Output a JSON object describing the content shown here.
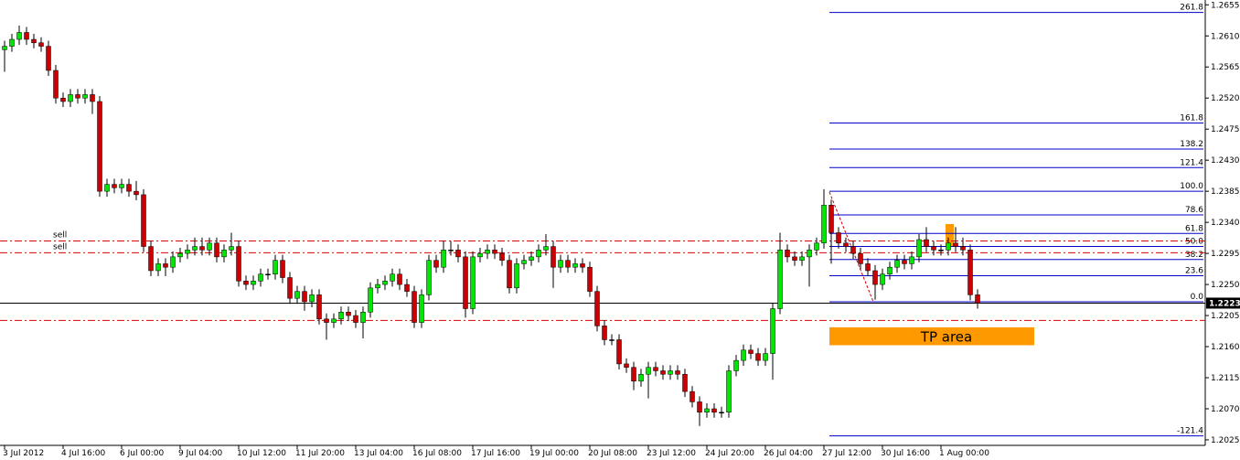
{
  "chart_data": {
    "type": "candlestick",
    "categories": [
      "3 Jul 2012",
      null,
      null,
      null,
      null,
      null,
      null,
      null,
      "4 Jul 16:00",
      null,
      null,
      null,
      null,
      null,
      null,
      null,
      "6 Jul 00:00",
      null,
      null,
      null,
      null,
      null,
      null,
      null,
      "9 Jul 04:00",
      null,
      null,
      null,
      null,
      null,
      null,
      null,
      "10 Jul 12:00",
      null,
      null,
      null,
      null,
      null,
      null,
      null,
      "11 Jul 20:00",
      null,
      null,
      null,
      null,
      null,
      null,
      null,
      "13 Jul 04:00",
      null,
      null,
      null,
      null,
      null,
      null,
      null,
      "16 Jul 08:00",
      null,
      null,
      null,
      null,
      null,
      null,
      null,
      "17 Jul 16:00",
      null,
      null,
      null,
      null,
      null,
      null,
      null,
      "19 Jul 00:00",
      null,
      null,
      null,
      null,
      null,
      null,
      null,
      "20 Jul 08:00",
      null,
      null,
      null,
      null,
      null,
      null,
      null,
      "23 Jul 12:00",
      null,
      null,
      null,
      null,
      null,
      null,
      null,
      "24 Jul 20:00",
      null,
      null,
      null,
      null,
      null,
      null,
      null,
      "26 Jul 04:00",
      null,
      null,
      null,
      null,
      null,
      null,
      null,
      "27 Jul 12:00",
      null,
      null,
      null,
      null,
      null,
      null,
      null,
      "30 Jul 16:00",
      null,
      null,
      null,
      null,
      null,
      null,
      null,
      "1 Aug 00:00",
      null,
      null,
      null,
      null,
      null
    ],
    "open": [
      1.259,
      1.2595,
      1.2605,
      1.2615,
      1.2605,
      1.26,
      1.2595,
      1.256,
      1.252,
      1.2515,
      1.2525,
      1.252,
      1.2525,
      1.2515,
      1.2385,
      1.2395,
      1.239,
      1.2395,
      1.2385,
      1.238,
      1.2305,
      1.227,
      1.228,
      1.2275,
      1.229,
      1.2295,
      1.23,
      1.2305,
      1.23,
      1.231,
      1.229,
      1.23,
      1.2305,
      1.2255,
      1.225,
      1.2255,
      1.2265,
      1.2265,
      1.2285,
      1.226,
      1.223,
      1.224,
      1.2225,
      1.2235,
      1.22,
      1.2195,
      1.22,
      1.221,
      1.2205,
      1.2195,
      1.221,
      1.2245,
      1.225,
      1.2255,
      1.2265,
      1.225,
      1.224,
      1.2195,
      1.2235,
      1.2285,
      1.2275,
      1.23,
      1.23,
      1.229,
      1.2215,
      1.229,
      1.2295,
      1.23,
      1.2295,
      1.2285,
      1.2245,
      1.228,
      1.2285,
      1.229,
      1.23,
      1.2305,
      1.2275,
      1.2285,
      1.2275,
      1.228,
      1.2275,
      1.224,
      1.219,
      1.217,
      1.217,
      1.2135,
      1.213,
      1.211,
      1.212,
      1.213,
      1.2125,
      1.212,
      1.2125,
      1.212,
      1.2095,
      1.208,
      1.2065,
      1.207,
      1.2065,
      1.2065,
      1.2125,
      1.214,
      1.2155,
      1.215,
      1.214,
      1.215,
      1.2215,
      1.23,
      1.229,
      1.2285,
      1.229,
      1.23,
      1.231,
      1.2365,
      1.2325,
      1.231,
      1.2305,
      1.2295,
      1.228,
      1.227,
      1.225,
      1.2265,
      1.2275,
      1.2285,
      1.228,
      1.229,
      1.2315,
      1.2305,
      1.23,
      1.23,
      1.231,
      1.2305,
      1.23,
      1.2235
    ],
    "high": [
      1.2603,
      1.2613,
      1.2625,
      1.2623,
      1.2613,
      1.2608,
      1.2603,
      1.2568,
      1.2528,
      1.2533,
      1.2533,
      1.2533,
      1.2533,
      1.2523,
      1.2403,
      1.2403,
      1.2403,
      1.2403,
      1.24,
      1.2388,
      1.2313,
      1.2288,
      1.2288,
      1.2298,
      1.2303,
      1.2308,
      1.2318,
      1.2318,
      1.2318,
      1.2318,
      1.2308,
      1.2325,
      1.2313,
      1.2263,
      1.2263,
      1.2273,
      1.2273,
      1.2293,
      1.2293,
      1.2268,
      1.2248,
      1.2248,
      1.2243,
      1.2243,
      1.2208,
      1.2208,
      1.2218,
      1.2218,
      1.2213,
      1.2218,
      1.2253,
      1.2258,
      1.2263,
      1.2273,
      1.2273,
      1.2258,
      1.2248,
      1.2243,
      1.2293,
      1.2293,
      1.2313,
      1.2313,
      1.2308,
      1.2298,
      1.2298,
      1.2303,
      1.2308,
      1.2308,
      1.2303,
      1.2293,
      1.2288,
      1.2293,
      1.2298,
      1.2308,
      1.2323,
      1.2313,
      1.2293,
      1.2293,
      1.2288,
      1.2288,
      1.2283,
      1.2248,
      1.2198,
      1.2178,
      1.2178,
      1.2143,
      1.2138,
      1.2128,
      1.2138,
      1.2138,
      1.2133,
      1.2133,
      1.2133,
      1.2128,
      1.2103,
      1.2088,
      1.2078,
      1.2078,
      1.2073,
      1.2133,
      1.2148,
      1.2163,
      1.2163,
      1.2158,
      1.2158,
      1.2223,
      1.2325,
      1.2308,
      1.2298,
      1.2298,
      1.2308,
      1.2318,
      1.2388,
      1.2373,
      1.2333,
      1.2318,
      1.2313,
      1.2303,
      1.2288,
      1.2278,
      1.2273,
      1.2283,
      1.2293,
      1.2293,
      1.2298,
      1.2323,
      1.2333,
      1.2313,
      1.2308,
      1.2318,
      1.2333,
      1.2318,
      1.2308,
      1.2243
    ],
    "low": [
      1.2558,
      1.2587,
      1.2597,
      1.2597,
      1.2592,
      1.2587,
      1.2552,
      1.2512,
      1.2507,
      1.2507,
      1.2512,
      1.2512,
      1.2497,
      1.2377,
      1.2377,
      1.2382,
      1.2382,
      1.2377,
      1.2372,
      1.2297,
      1.2262,
      1.2262,
      1.2262,
      1.2267,
      1.2282,
      1.2287,
      1.2292,
      1.2292,
      1.2292,
      1.2282,
      1.2282,
      1.2292,
      1.2247,
      1.2242,
      1.2242,
      1.2247,
      1.2257,
      1.2257,
      1.2252,
      1.2222,
      1.2222,
      1.2212,
      1.2217,
      1.2192,
      1.217,
      1.2187,
      1.2192,
      1.2197,
      1.2187,
      1.2172,
      1.2202,
      1.2237,
      1.2242,
      1.2247,
      1.2242,
      1.2232,
      1.2187,
      1.2187,
      1.2227,
      1.2267,
      1.2267,
      1.2292,
      1.2282,
      1.2202,
      1.2207,
      1.2282,
      1.2287,
      1.2287,
      1.2277,
      1.2237,
      1.2237,
      1.2272,
      1.2277,
      1.2282,
      1.2292,
      1.2245,
      1.2267,
      1.2267,
      1.2267,
      1.2267,
      1.2232,
      1.2182,
      1.2162,
      1.2162,
      1.2127,
      1.2122,
      1.2097,
      1.2102,
      1.2085,
      1.2117,
      1.2112,
      1.2112,
      1.2112,
      1.2087,
      1.2072,
      1.2045,
      1.2057,
      1.2057,
      1.2057,
      1.2057,
      1.2117,
      1.2132,
      1.2142,
      1.2132,
      1.2132,
      1.2112,
      1.2207,
      1.2282,
      1.2277,
      1.2277,
      1.2247,
      1.2292,
      1.2302,
      1.228,
      1.2302,
      1.2297,
      1.2287,
      1.2272,
      1.2262,
      1.2228,
      1.2242,
      1.2257,
      1.2267,
      1.2272,
      1.2272,
      1.2282,
      1.2297,
      1.2292,
      1.2292,
      1.2292,
      1.2297,
      1.2292,
      1.2227,
      1.2215
    ],
    "close": [
      1.2595,
      1.2605,
      1.2615,
      1.2605,
      1.26,
      1.2595,
      1.256,
      1.252,
      1.2515,
      1.2525,
      1.252,
      1.2525,
      1.2515,
      1.2385,
      1.2395,
      1.239,
      1.2395,
      1.2385,
      1.238,
      1.2305,
      1.227,
      1.228,
      1.2275,
      1.229,
      1.2295,
      1.23,
      1.2305,
      1.23,
      1.231,
      1.229,
      1.23,
      1.2305,
      1.2255,
      1.225,
      1.2255,
      1.2265,
      1.2265,
      1.2285,
      1.226,
      1.223,
      1.224,
      1.2225,
      1.2235,
      1.22,
      1.2195,
      1.22,
      1.221,
      1.2205,
      1.2195,
      1.221,
      1.2245,
      1.225,
      1.2255,
      1.2265,
      1.225,
      1.224,
      1.2195,
      1.2235,
      1.2285,
      1.2275,
      1.23,
      1.23,
      1.229,
      1.2215,
      1.229,
      1.2295,
      1.23,
      1.2295,
      1.2285,
      1.2245,
      1.228,
      1.2285,
      1.229,
      1.23,
      1.2305,
      1.2275,
      1.2285,
      1.2275,
      1.228,
      1.2275,
      1.224,
      1.219,
      1.217,
      1.217,
      1.2135,
      1.213,
      1.211,
      1.212,
      1.213,
      1.2125,
      1.212,
      1.2125,
      1.212,
      1.2095,
      1.208,
      1.2065,
      1.207,
      1.2065,
      1.2065,
      1.2125,
      1.214,
      1.2155,
      1.215,
      1.214,
      1.215,
      1.2215,
      1.23,
      1.229,
      1.2285,
      1.229,
      1.23,
      1.231,
      1.2365,
      1.2325,
      1.231,
      1.2305,
      1.2295,
      1.228,
      1.227,
      1.225,
      1.2265,
      1.2275,
      1.2285,
      1.228,
      1.229,
      1.2315,
      1.2305,
      1.23,
      1.23,
      1.231,
      1.2305,
      1.23,
      1.2235,
      1.2223
    ],
    "up_color": "#00e600",
    "down_color": "#cc0000",
    "ylim": [
      1.2017,
      1.2662
    ],
    "yticks": [
      1.2655,
      {
        "value": 1.261,
        "label": "1.2610"
      },
      1.2565,
      {
        "value": 1.252,
        "label": "1.2520"
      },
      1.2475,
      {
        "value": 1.243,
        "label": "1.2430"
      },
      1.2385,
      {
        "value": 1.234,
        "label": "1.2340"
      },
      1.2295,
      {
        "value": 1.225,
        "label": "1.2250"
      },
      1.2205,
      {
        "value": 1.216,
        "label": "1.2160"
      },
      1.2115,
      {
        "value": 1.207,
        "label": "1.2070"
      },
      1.2025
    ],
    "current_price": 1.2223,
    "levels": [
      {
        "price": 1.2313,
        "label": "sell"
      },
      {
        "price": 1.2296,
        "label": "sell"
      },
      {
        "price": 1.2198
      }
    ],
    "fibonacci": {
      "range": [
        1.2225,
        1.2385
      ],
      "color": "#0000cc",
      "levels": [
        261.8,
        161.8,
        138.2,
        121.4,
        {
          "value": 100,
          "label": "100.0"
        },
        78.6,
        61.8,
        {
          "value": 50,
          "label": "50.0"
        },
        38.2,
        23.6,
        {
          "value": 0,
          "label": "0.0"
        },
        -121.4
      ]
    },
    "tp_area": {
      "label": "TP area",
      "range": [
        1.2162,
        1.2188
      ],
      "color": "#ff9900"
    }
  }
}
